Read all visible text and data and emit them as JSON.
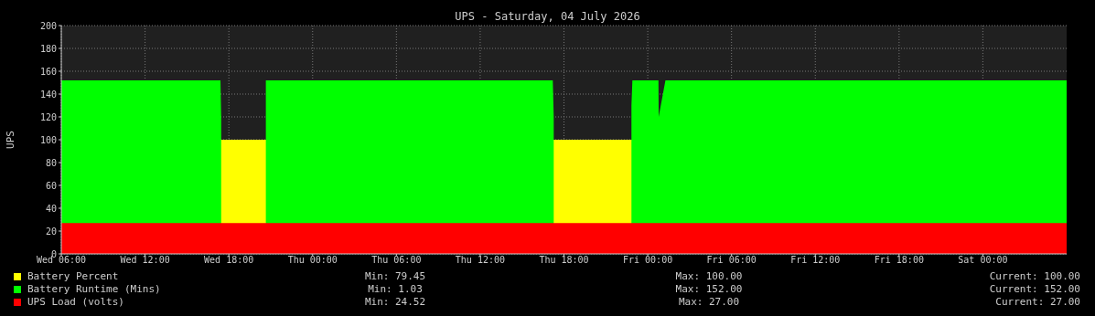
{
  "chart_data": {
    "type": "area",
    "title": "UPS - Saturday, 04 July 2026",
    "ylabel": "UPS",
    "xlim": [
      "2026-07-01T06:00",
      "2026-07-04T06:00"
    ],
    "xticks": [
      {
        "value": "2026-07-01T06:00",
        "label": "Wed 06:00"
      },
      {
        "value": "2026-07-01T12:00",
        "label": "Wed 12:00"
      },
      {
        "value": "2026-07-01T18:00",
        "label": "Wed 18:00"
      },
      {
        "value": "2026-07-02T00:00",
        "label": "Thu 00:00"
      },
      {
        "value": "2026-07-02T06:00",
        "label": "Thu 06:00"
      },
      {
        "value": "2026-07-02T12:00",
        "label": "Thu 12:00"
      },
      {
        "value": "2026-07-02T18:00",
        "label": "Thu 18:00"
      },
      {
        "value": "2026-07-03T00:00",
        "label": "Fri 00:00"
      },
      {
        "value": "2026-07-03T06:00",
        "label": "Fri 06:00"
      },
      {
        "value": "2026-07-03T12:00",
        "label": "Fri 12:00"
      },
      {
        "value": "2026-07-03T18:00",
        "label": "Fri 18:00"
      },
      {
        "value": "2026-07-04T00:00",
        "label": "Sat 00:00"
      }
    ],
    "ylim": [
      0,
      200
    ],
    "yticks": [
      0,
      20,
      40,
      60,
      80,
      100,
      120,
      140,
      160,
      180,
      200
    ],
    "grid": true,
    "legend": "bottom",
    "series": [
      {
        "name": "Battery Percent",
        "color": "#ffff00",
        "x": [
          "2026-07-01T06:00",
          "2026-07-04T06:00"
        ],
        "values": [
          100,
          100
        ]
      },
      {
        "name": "Battery Runtime (Mins)",
        "color": "#00ff00",
        "x": [
          "2026-07-01T06:00",
          "2026-07-01T17:24",
          "2026-07-01T17:27",
          "2026-07-01T17:30",
          "2026-07-01T20:36",
          "2026-07-01T20:39",
          "2026-07-02T17:12",
          "2026-07-02T17:16",
          "2026-07-02T17:18",
          "2026-07-02T22:48",
          "2026-07-02T22:50",
          "2026-07-02T22:54",
          "2026-07-03T00:46",
          "2026-07-03T00:47",
          "2026-07-03T01:16",
          "2026-07-04T06:00"
        ],
        "values": [
          152,
          152,
          120,
          null,
          null,
          152,
          152,
          120,
          null,
          null,
          130,
          152,
          152,
          120,
          152,
          152
        ]
      },
      {
        "name": "UPS Load (volts)",
        "color": "#ff0000",
        "x": [
          "2026-07-01T06:00",
          "2026-07-04T06:00"
        ],
        "values": [
          27,
          27
        ]
      }
    ],
    "annotations": [
      "Min: 79.45",
      "Max: 100.00",
      "Current: 100.00",
      "Min: 1.03",
      "Max: 152.00",
      "Current: 152.00",
      "Min: 24.52",
      "Max: 27.00",
      "Current: 27.00"
    ]
  }
}
